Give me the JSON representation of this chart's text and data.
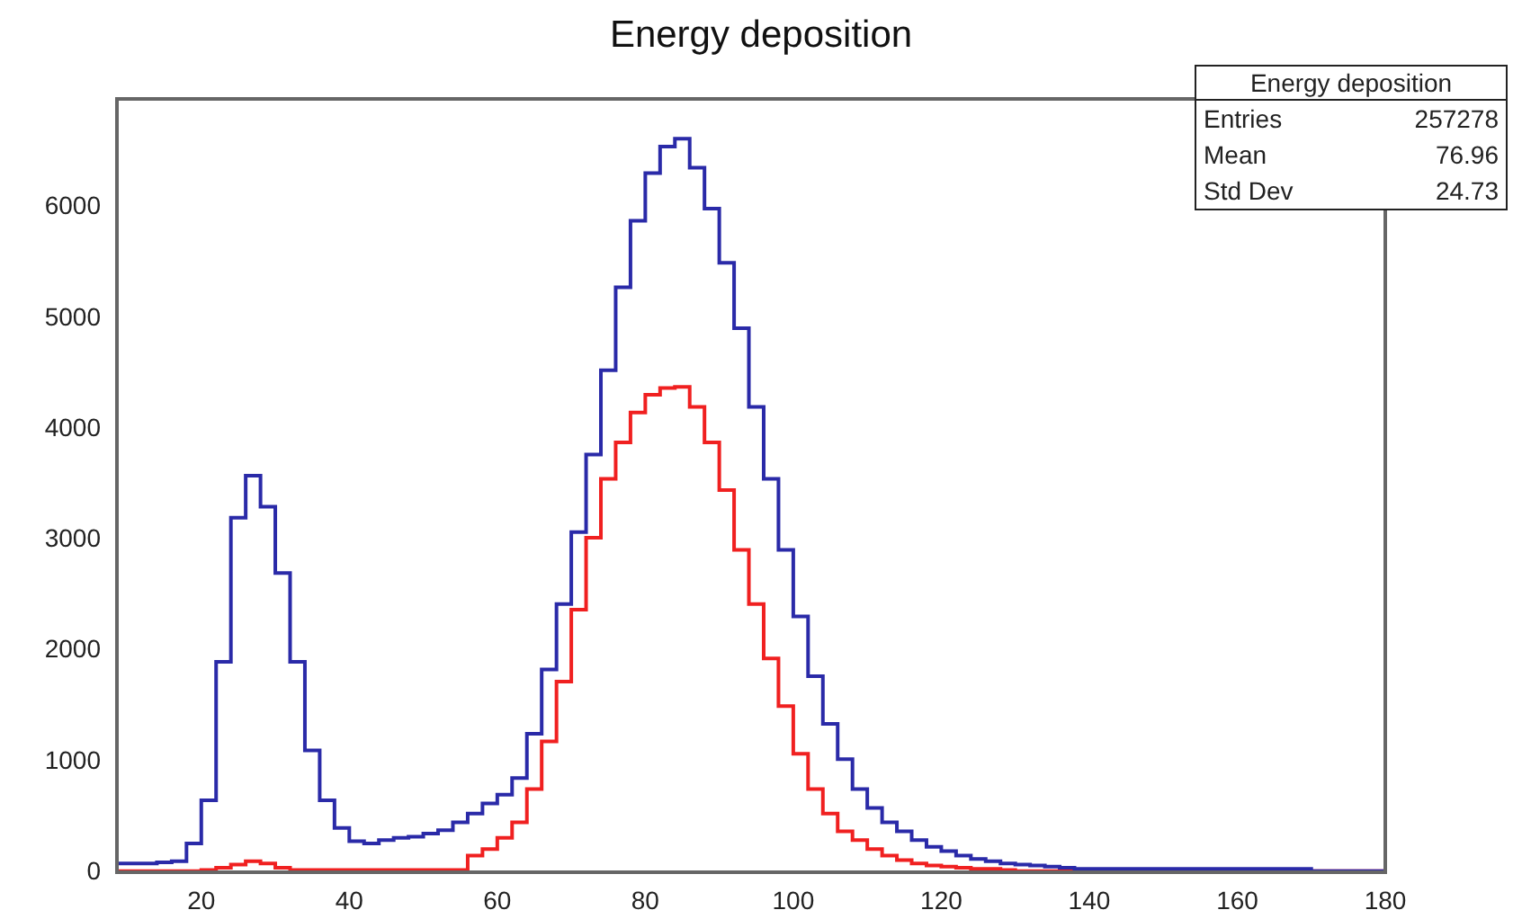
{
  "chart_data": {
    "type": "histogram",
    "title": "Energy deposition",
    "bins": [
      8.6,
      10,
      12,
      14,
      16,
      18,
      20,
      22,
      24,
      26,
      28,
      30,
      32,
      34,
      36,
      38,
      40,
      42,
      44,
      46,
      48,
      50,
      52,
      54,
      56,
      58,
      60,
      62,
      64,
      66,
      68,
      70,
      72,
      74,
      76,
      78,
      80,
      82,
      84,
      86,
      88,
      90,
      92,
      94,
      96,
      98,
      100,
      102,
      104,
      106,
      108,
      110,
      112,
      114,
      116,
      118,
      120,
      122,
      124,
      126,
      128,
      130,
      132,
      134,
      136,
      138,
      140,
      142,
      144,
      146,
      148,
      150,
      152,
      154,
      156,
      158,
      160,
      162,
      164,
      166,
      168,
      170,
      172,
      174,
      176,
      178,
      180
    ],
    "series": [
      {
        "color": "#2a2aa8",
        "values": [
          80,
          80,
          80,
          90,
          100,
          260,
          650,
          1900,
          3200,
          3580,
          3300,
          2700,
          1900,
          1100,
          650,
          400,
          280,
          260,
          290,
          310,
          320,
          350,
          380,
          450,
          530,
          620,
          700,
          850,
          1250,
          1830,
          2420,
          3070,
          3770,
          4530,
          5280,
          5880,
          6310,
          6550,
          6620,
          6360,
          5990,
          5500,
          4910,
          4200,
          3550,
          2910,
          2310,
          1770,
          1340,
          1020,
          750,
          580,
          450,
          370,
          290,
          230,
          190,
          150,
          120,
          100,
          80,
          70,
          60,
          50,
          40,
          30,
          30,
          30,
          30,
          30,
          30,
          30,
          30,
          30,
          30,
          30,
          30,
          30,
          30,
          30,
          30,
          10,
          10,
          10,
          10,
          10
        ]
      },
      {
        "color": "#f02020",
        "values": [
          10,
          10,
          10,
          10,
          10,
          10,
          20,
          40,
          70,
          100,
          80,
          40,
          20,
          20,
          20,
          20,
          20,
          20,
          20,
          20,
          20,
          20,
          20,
          20,
          150,
          210,
          310,
          450,
          750,
          1180,
          1720,
          2370,
          3020,
          3550,
          3880,
          4150,
          4310,
          4370,
          4380,
          4200,
          3880,
          3450,
          2910,
          2420,
          1930,
          1500,
          1070,
          750,
          530,
          370,
          290,
          210,
          150,
          110,
          80,
          60,
          50,
          40,
          30,
          30,
          20,
          10,
          10,
          10,
          10,
          10,
          10,
          10,
          10,
          10,
          10,
          10,
          10,
          10,
          10,
          10,
          10,
          10,
          10,
          10,
          10,
          10,
          10,
          10,
          10,
          10
        ]
      }
    ],
    "xlim": [
      8.6,
      180
    ],
    "xticks": [
      20,
      40,
      60,
      80,
      100,
      120,
      140,
      160,
      180
    ],
    "ylim": [
      0,
      6980
    ],
    "yticks": [
      0,
      1000,
      2000,
      3000,
      4000,
      5000,
      6000
    ],
    "grid": false,
    "legend": false,
    "annotations": [
      "Energy deposition",
      "Entries",
      "257278",
      "Mean",
      "76.96",
      "Std Dev",
      "24.73"
    ]
  }
}
